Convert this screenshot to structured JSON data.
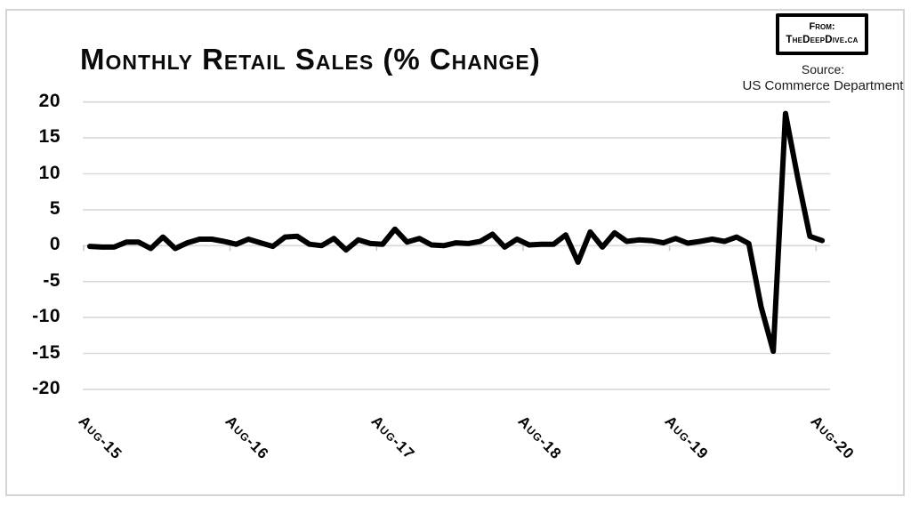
{
  "badge": {
    "from_label": "From:",
    "site": "TheDeepDive.ca"
  },
  "source": {
    "label": "Source:",
    "org": "US Commerce Department"
  },
  "colors": {
    "line": "#000000",
    "grid": "#d9d9d9",
    "tick": "#c9c9c9",
    "frame": "#d5d5d5",
    "text": "#000000"
  },
  "chart_data": {
    "type": "line",
    "title": "Monthly Retail Sales (% Change)",
    "xlabel": "",
    "ylabel": "",
    "ylim": [
      -20,
      20
    ],
    "y_ticks": [
      20,
      15,
      10,
      5,
      0,
      -5,
      -10,
      -15,
      -20
    ],
    "x_tick_labels": [
      "Aug-15",
      "Aug-16",
      "Aug-17",
      "Aug-18",
      "Aug-19",
      "Aug-20"
    ],
    "grid": "horizontal-only",
    "legend": "none",
    "months": [
      "Aug-15",
      "Sep-15",
      "Oct-15",
      "Nov-15",
      "Dec-15",
      "Jan-16",
      "Feb-16",
      "Mar-16",
      "Apr-16",
      "May-16",
      "Jun-16",
      "Jul-16",
      "Aug-16",
      "Sep-16",
      "Oct-16",
      "Nov-16",
      "Dec-16",
      "Jan-17",
      "Feb-17",
      "Mar-17",
      "Apr-17",
      "May-17",
      "Jun-17",
      "Jul-17",
      "Aug-17",
      "Sep-17",
      "Oct-17",
      "Nov-17",
      "Dec-17",
      "Jan-18",
      "Feb-18",
      "Mar-18",
      "Apr-18",
      "May-18",
      "Jun-18",
      "Jul-18",
      "Aug-18",
      "Sep-18",
      "Oct-18",
      "Nov-18",
      "Dec-18",
      "Jan-19",
      "Feb-19",
      "Mar-19",
      "Apr-19",
      "May-19",
      "Jun-19",
      "Jul-19",
      "Aug-19",
      "Sep-19",
      "Oct-19",
      "Nov-19",
      "Dec-19",
      "Jan-20",
      "Feb-20",
      "Mar-20",
      "Apr-20",
      "May-20",
      "Jun-20",
      "Jul-20",
      "Aug-20"
    ],
    "values": [
      -0.1,
      -0.2,
      -0.2,
      0.5,
      0.5,
      -0.4,
      1.2,
      -0.4,
      0.4,
      0.9,
      0.9,
      0.6,
      0.2,
      0.9,
      0.4,
      -0.1,
      1.2,
      1.3,
      0.2,
      0.0,
      1.0,
      -0.6,
      0.8,
      0.3,
      0.2,
      2.3,
      0.5,
      1.0,
      0.1,
      0.0,
      0.4,
      0.3,
      0.6,
      1.6,
      -0.2,
      0.9,
      0.1,
      0.2,
      0.2,
      1.5,
      -2.3,
      1.9,
      -0.2,
      1.8,
      0.6,
      0.8,
      0.7,
      0.4,
      1.0,
      0.35,
      0.6,
      0.9,
      0.6,
      1.2,
      0.3,
      -8.5,
      -14.7,
      18.4,
      9.5,
      1.3,
      0.7
    ]
  }
}
